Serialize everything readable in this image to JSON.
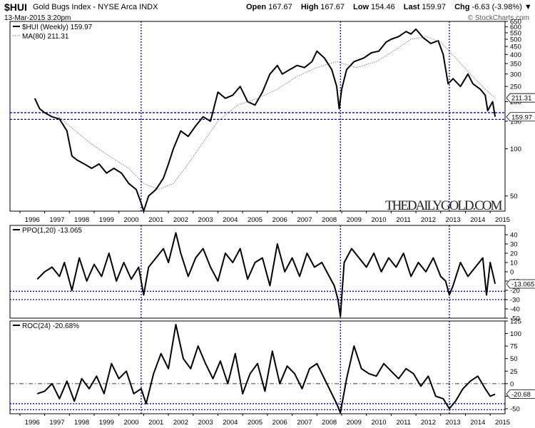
{
  "header": {
    "symbol": "$HUI",
    "name": "Gold Bugs Index - NYSE Arca INDX",
    "timestamp": "13-Mar-2015 3:20pm",
    "copyright": "© StockCharts.com",
    "open_label": "Open",
    "open": "167.67",
    "high_label": "High",
    "high": "167.67",
    "low_label": "Low",
    "low": "154.46",
    "last_label": "Last",
    "last": "159.97",
    "chg_label": "Chg",
    "chg": "-6.63 (-3.98%)",
    "chg_marker": "▼"
  },
  "watermark": "THEDAILYGOLD.COM",
  "colors": {
    "price": "#000000",
    "ma": "#777777",
    "ref_lines": "#0000cc",
    "frame": "#000000"
  },
  "chart_data": [
    {
      "type": "line",
      "title": "$HUI (Weekly) 159.97",
      "scale": "log",
      "ylim": [
        40,
        650
      ],
      "y_ticks": [
        650,
        600,
        550,
        500,
        450,
        400,
        350,
        300,
        250,
        200,
        150,
        100,
        50
      ],
      "x_ticks": [
        "1996",
        "1997",
        "1998",
        "1999",
        "2000",
        "2001",
        "2002",
        "2003",
        "2004",
        "2005",
        "2006",
        "2007",
        "2008",
        "2009",
        "2010",
        "2011",
        "2012",
        "2013",
        "2014",
        "2015"
      ],
      "xlim": [
        1995.6,
        2015.6
      ],
      "last_value_label": "159.97",
      "ma_value_label": "211.31",
      "series": [
        {
          "name": "$HUI (Weekly) 159.97",
          "x": [
            1996.6,
            1996.8,
            1997.0,
            1997.3,
            1997.6,
            1997.9,
            1998.1,
            1998.3,
            1998.6,
            1998.9,
            1999.2,
            1999.5,
            1999.8,
            2000.1,
            2000.4,
            2000.7,
            2000.9,
            2001.0,
            2001.2,
            2001.5,
            2001.8,
            2002.0,
            2002.2,
            2002.5,
            2002.8,
            2003.1,
            2003.4,
            2003.7,
            2004.0,
            2004.3,
            2004.6,
            2004.9,
            2005.2,
            2005.5,
            2005.8,
            2006.1,
            2006.4,
            2006.6,
            2006.9,
            2007.2,
            2007.5,
            2007.8,
            2008.0,
            2008.3,
            2008.6,
            2008.8,
            2008.9,
            2009.0,
            2009.2,
            2009.5,
            2009.9,
            2010.2,
            2010.5,
            2010.8,
            2011.0,
            2011.3,
            2011.6,
            2011.8,
            2012.0,
            2012.3,
            2012.6,
            2012.9,
            2013.1,
            2013.3,
            2013.5,
            2013.8,
            2014.1,
            2014.3,
            2014.6,
            2014.8,
            2014.9,
            2015.1,
            2015.2
          ],
          "values": [
            210,
            180,
            170,
            160,
            155,
            130,
            90,
            85,
            80,
            75,
            80,
            70,
            75,
            70,
            60,
            55,
            45,
            40,
            50,
            55,
            65,
            80,
            100,
            130,
            120,
            140,
            160,
            150,
            230,
            210,
            220,
            250,
            200,
            190,
            230,
            300,
            340,
            300,
            320,
            340,
            330,
            360,
            420,
            380,
            320,
            250,
            180,
            240,
            320,
            360,
            380,
            410,
            420,
            480,
            500,
            520,
            560,
            540,
            580,
            510,
            470,
            490,
            400,
            260,
            280,
            250,
            300,
            260,
            240,
            220,
            175,
            200,
            160
          ]
        },
        {
          "name": "MA(80) 211.31",
          "x": [
            1997.4,
            1998.0,
            1998.8,
            1999.6,
            2000.4,
            2001.0,
            2001.6,
            2002.2,
            2002.8,
            2003.4,
            2004.0,
            2004.8,
            2005.6,
            2006.4,
            2007.2,
            2008.0,
            2008.8,
            2009.6,
            2010.4,
            2011.2,
            2011.8,
            2012.4,
            2013.0,
            2013.6,
            2014.2,
            2014.8,
            2015.2
          ],
          "values": [
            170,
            140,
            110,
            90,
            75,
            60,
            55,
            60,
            80,
            110,
            150,
            190,
            210,
            240,
            290,
            330,
            360,
            330,
            360,
            430,
            500,
            520,
            480,
            380,
            300,
            240,
            211
          ]
        }
      ]
    },
    {
      "type": "line",
      "title": "PPO(1,20) -13.065",
      "ylim": [
        -50,
        50
      ],
      "y_ticks": [
        40,
        30,
        20,
        10,
        0,
        -10,
        -20,
        -30,
        -40,
        -50
      ],
      "x_ticks": [],
      "xlim": [
        1995.6,
        2015.6
      ],
      "last_value_label": "-13.065",
      "series": [
        {
          "name": "PPO(1,20) -13.065",
          "x": [
            1996.7,
            1997.0,
            1997.3,
            1997.6,
            1997.8,
            1998.1,
            1998.4,
            1998.7,
            1999.0,
            1999.3,
            1999.6,
            1999.9,
            2000.2,
            2000.5,
            2000.8,
            2001.0,
            2001.2,
            2001.5,
            2001.8,
            2002.0,
            2002.3,
            2002.5,
            2002.8,
            2003.1,
            2003.4,
            2003.7,
            2004.0,
            2004.3,
            2004.6,
            2004.9,
            2005.2,
            2005.5,
            2005.8,
            2006.1,
            2006.4,
            2006.7,
            2007.0,
            2007.3,
            2007.6,
            2007.9,
            2008.2,
            2008.5,
            2008.7,
            2008.85,
            2008.95,
            2009.1,
            2009.4,
            2009.7,
            2010.0,
            2010.3,
            2010.6,
            2010.9,
            2011.2,
            2011.5,
            2011.8,
            2012.1,
            2012.4,
            2012.7,
            2013.0,
            2013.2,
            2013.35,
            2013.5,
            2013.8,
            2014.1,
            2014.4,
            2014.7,
            2014.85,
            2015.0,
            2015.2
          ],
          "values": [
            -8,
            0,
            5,
            -5,
            10,
            -20,
            15,
            -10,
            8,
            -5,
            20,
            -10,
            10,
            -8,
            5,
            -25,
            5,
            15,
            25,
            10,
            42,
            20,
            -5,
            15,
            25,
            5,
            -10,
            20,
            10,
            25,
            -8,
            10,
            15,
            -15,
            30,
            0,
            15,
            -5,
            20,
            5,
            10,
            -5,
            -15,
            -30,
            -48,
            10,
            25,
            15,
            5,
            20,
            0,
            15,
            5,
            20,
            -5,
            10,
            0,
            15,
            -5,
            -10,
            -25,
            -15,
            10,
            -5,
            5,
            15,
            -25,
            10,
            -13
          ]
        }
      ]
    },
    {
      "type": "line",
      "title": "ROC(24) -20.68%",
      "ylim": [
        -60,
        125
      ],
      "y_ticks": [
        125,
        100,
        75,
        50,
        25,
        0,
        -25,
        -50
      ],
      "x_ticks": [
        "1996",
        "1997",
        "1998",
        "1999",
        "2000",
        "2001",
        "2002",
        "2003",
        "2004",
        "2005",
        "2006",
        "2007",
        "2008",
        "2009",
        "2010",
        "2011",
        "2012",
        "2013",
        "2014",
        "2015"
      ],
      "xlim": [
        1995.6,
        2015.6
      ],
      "last_value_label": "-20.68",
      "series": [
        {
          "name": "ROC(24) -20.68%",
          "x": [
            1996.7,
            1997.0,
            1997.3,
            1997.6,
            1997.9,
            1998.2,
            1998.5,
            1998.8,
            1999.1,
            1999.4,
            1999.7,
            2000.0,
            2000.3,
            2000.6,
            2000.9,
            2001.1,
            2001.4,
            2001.7,
            2002.0,
            2002.3,
            2002.6,
            2002.9,
            2003.2,
            2003.5,
            2003.8,
            2004.1,
            2004.4,
            2004.7,
            2005.0,
            2005.3,
            2005.6,
            2005.9,
            2006.2,
            2006.5,
            2006.8,
            2007.1,
            2007.4,
            2007.7,
            2008.0,
            2008.3,
            2008.6,
            2008.8,
            2008.95,
            2009.2,
            2009.5,
            2009.8,
            2010.1,
            2010.4,
            2010.7,
            2011.0,
            2011.3,
            2011.6,
            2011.9,
            2012.2,
            2012.5,
            2012.8,
            2013.1,
            2013.35,
            2013.6,
            2013.9,
            2014.2,
            2014.5,
            2014.8,
            2015.0,
            2015.2
          ],
          "values": [
            -20,
            -15,
            0,
            -30,
            5,
            -35,
            10,
            -10,
            15,
            -20,
            40,
            10,
            25,
            -20,
            -10,
            -40,
            20,
            60,
            30,
            118,
            50,
            30,
            75,
            40,
            10,
            45,
            0,
            60,
            -20,
            20,
            40,
            -15,
            65,
            0,
            35,
            20,
            -10,
            30,
            40,
            10,
            -20,
            -40,
            -58,
            10,
            75,
            30,
            20,
            15,
            40,
            25,
            10,
            30,
            20,
            -5,
            15,
            -25,
            -30,
            -50,
            -35,
            -10,
            5,
            15,
            -10,
            -25,
            -21
          ]
        }
      ]
    }
  ]
}
